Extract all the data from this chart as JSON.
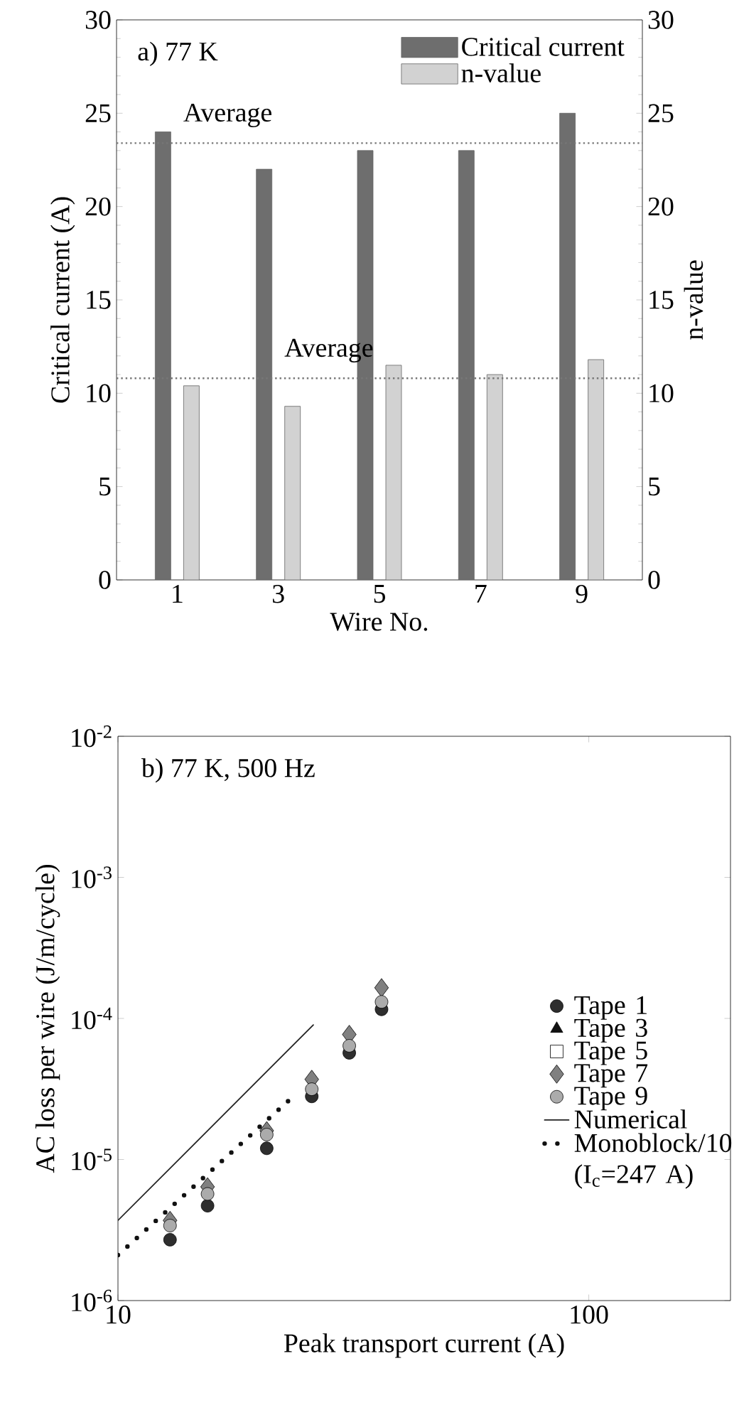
{
  "chart_data": [
    {
      "type": "bar",
      "categories": [
        "1",
        "3",
        "5",
        "7",
        "9"
      ],
      "xlabel": "Wire No.",
      "ylabel": "Critical current (A)",
      "y2label": "n-value",
      "series": [
        {
          "name": "Critical current",
          "color": "#6e6e6e",
          "values": [
            24,
            22,
            23,
            23,
            25
          ]
        },
        {
          "name": "n-value",
          "color": "#d2d2d2",
          "axis": "y2",
          "values": [
            10.4,
            9.3,
            11.5,
            11.0,
            11.8
          ]
        }
      ],
      "ylim": [
        0,
        30
      ],
      "yticks": [
        0,
        5,
        10,
        15,
        20,
        25,
        30
      ],
      "y2lim": [
        0,
        30
      ],
      "y2ticks": [
        0,
        5,
        10,
        15,
        20,
        25,
        30
      ],
      "ref_lines": [
        {
          "axis": "y",
          "value": 23.4,
          "label": "Average",
          "color": "#777777",
          "line_style": "dotted"
        },
        {
          "axis": "y2",
          "value": 10.8,
          "label": "Average",
          "color": "#777777",
          "line_style": "dotted"
        }
      ],
      "annotations": [
        "a) 77 K"
      ],
      "legend": "top right"
    },
    {
      "type": "scatter",
      "log": "xy",
      "xlabel": "Peak transport current (A)",
      "ylabel": "AC loss per wire (J/m/cycle)",
      "xlim": [
        10,
        200
      ],
      "xticks": [
        10,
        100
      ],
      "ylim": [
        1e-06,
        0.01
      ],
      "yticks": [
        {
          "value": 1e-06,
          "label": "10$^{-6}$"
        },
        {
          "value": 1e-05,
          "label": "10$^{-5}$"
        },
        {
          "value": 0.0001,
          "label": "10$^{-4}$"
        },
        {
          "value": 0.001,
          "label": "10$^{-3}$"
        },
        {
          "value": 0.01,
          "label": "10$^{-2}$"
        }
      ],
      "series": [
        {
          "name": "Tape 1",
          "color": "#2e2e2e",
          "marker": "circle",
          "x": [
            12.9,
            15.5,
            20.7,
            25.8,
            31.0,
            36.3
          ],
          "values": [
            2.7e-06,
            4.7e-06,
            1.2e-05,
            2.8e-05,
            5.7e-05,
            0.000116
          ]
        },
        {
          "name": "Tape 3",
          "color": "#111111",
          "marker": "triangle",
          "values": [
            null,
            null,
            null,
            null,
            null,
            null
          ]
        },
        {
          "name": "Tape 5",
          "color": "#ffffff",
          "marker": "square",
          "values": [
            null,
            null,
            null,
            null,
            null,
            null
          ]
        },
        {
          "name": "Tape 7",
          "color": "#808080",
          "marker": "diamond",
          "x": [
            12.9,
            15.5,
            20.7,
            25.8,
            31.0,
            36.3
          ],
          "values": [
            3.7e-06,
            6.4e-06,
            1.6e-05,
            3.7e-05,
            7.7e-05,
            0.000165
          ]
        },
        {
          "name": "Tape 9",
          "color": "#ababab",
          "marker": "circle",
          "x": [
            12.9,
            15.5,
            20.7,
            25.8,
            31.0,
            36.3
          ],
          "values": [
            3.4e-06,
            5.7e-06,
            1.5e-05,
            3.15e-05,
            6.4e-05,
            0.000131
          ]
        },
        {
          "name": "Numerical",
          "type": "line",
          "color": "#222222",
          "line_style": "solid",
          "marker": "none",
          "x": [
            10,
            26
          ],
          "values": [
            3.7e-06,
            9e-05
          ]
        },
        {
          "name": "Monoblock/10 (I$_{c}$=247 A)",
          "type": "line",
          "color": "#111111",
          "line_style": "dotted",
          "marker": "none",
          "x": [
            10,
            23
          ],
          "values": [
            2.1e-06,
            2.6e-05
          ]
        }
      ],
      "annotations": [
        "b) 77 K, 500 Hz"
      ],
      "legend": "right"
    }
  ]
}
